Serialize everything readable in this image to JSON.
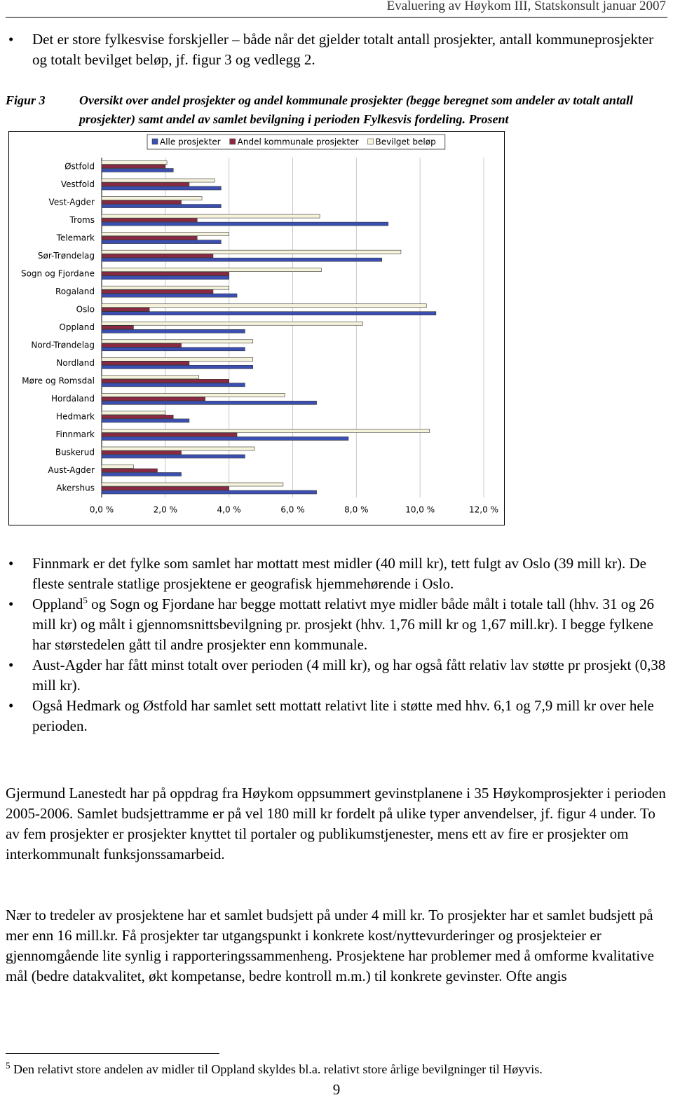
{
  "header": {
    "title": "Evaluering av Høykom III, Statskonsult januar 2007"
  },
  "bullets_top": [
    "Det er store fylkesvise forskjeller – både når det gjelder totalt antall prosjekter, antall kommuneprosjekter og totalt bevilget beløp, jf. figur 3 og vedlegg 2."
  ],
  "figure": {
    "label": "Figur 3",
    "caption": "Oversikt over andel prosjekter og andel kommunale prosjekter (begge beregnet som andeler av totalt antall prosjekter) samt andel av samlet bevilgning i perioden Fylkesvis fordeling. Prosent"
  },
  "chart_data": {
    "type": "hbar",
    "categories": [
      "Østfold",
      "Vestfold",
      "Vest-Agder",
      "Troms",
      "Telemark",
      "Sør-Trøndelag",
      "Sogn og Fjordane",
      "Rogaland",
      "Oslo",
      "Oppland",
      "Nord-Trøndelag",
      "Nordland",
      "Møre og Romsdal",
      "Hordaland",
      "Hedmark",
      "Finnmark",
      "Buskerud",
      "Aust-Agder",
      "Akershus"
    ],
    "series": [
      {
        "name": "Alle prosjekter",
        "color": "#3b4fb3",
        "values": [
          2.25,
          3.75,
          3.75,
          9.0,
          3.75,
          8.8,
          4.0,
          4.25,
          10.5,
          4.5,
          4.5,
          4.75,
          4.5,
          6.75,
          2.75,
          7.75,
          4.5,
          2.5,
          6.75
        ]
      },
      {
        "name": "Andel kommunale prosjekter",
        "color": "#8b2942",
        "values": [
          2.0,
          2.75,
          2.5,
          3.0,
          3.0,
          3.5,
          4.0,
          3.5,
          1.5,
          1.0,
          2.5,
          2.75,
          4.0,
          3.25,
          2.25,
          4.25,
          2.5,
          1.75,
          4.0
        ]
      },
      {
        "name": "Bevilget beløp",
        "color": "#f6f3dc",
        "values": [
          2.05,
          3.55,
          3.15,
          6.85,
          4.0,
          9.4,
          6.9,
          4.0,
          10.2,
          8.2,
          4.75,
          4.75,
          3.05,
          5.75,
          2.0,
          10.3,
          4.8,
          1.0,
          5.7
        ]
      }
    ],
    "xlim": [
      0,
      12
    ],
    "xticks": [
      {
        "value": 0,
        "label": "0,0 %"
      },
      {
        "value": 2,
        "label": "2,0 %"
      },
      {
        "value": 4,
        "label": "4,0 %"
      },
      {
        "value": 6,
        "label": "6,0 %"
      },
      {
        "value": 8,
        "label": "8,0 %"
      },
      {
        "value": 10,
        "label": "10,0 %"
      },
      {
        "value": 12,
        "label": "12,0 %"
      }
    ],
    "grid": true,
    "legend": "top"
  },
  "bullets_bottom": [
    {
      "text": "Finnmark er det fylke som samlet har mottatt mest midler (40 mill kr), tett fulgt av Oslo (39 mill kr). De fleste sentrale statlige prosjektene er geografisk hjemmehørende i Oslo."
    },
    {
      "text": "Oppland",
      "sup": "5",
      "rest": " og Sogn og Fjordane har begge mottatt relativt mye midler både målt i totale tall (hhv. 31 og 26 mill kr) og målt i gjennomsnittsbevilgning pr. prosjekt (hhv. 1,76 mill kr og 1,67 mill.kr). I begge fylkene har størstedelen gått til andre prosjekter enn kommunale."
    },
    {
      "text": "Aust-Agder har fått minst totalt over perioden (4 mill kr), og har også fått relativ lav støtte pr prosjekt (0,38 mill kr)."
    },
    {
      "text": "Også Hedmark og Østfold har samlet sett mottatt relativt lite i støtte med hhv. 6,1 og 7,9 mill kr over hele perioden."
    }
  ],
  "paragraphs": [
    "Gjermund Lanestedt har på oppdrag fra Høykom oppsummert gevinstplanene i 35 Høykomprosjekter i perioden 2005-2006. Samlet budsjettramme er på vel 180 mill kr fordelt på ulike typer anvendelser, jf. figur 4 under. To av fem prosjekter er prosjekter knyttet til portaler og publikumstjenester, mens ett av fire er prosjekter om interkommunalt funksjonssamarbeid.",
    "Nær to tredeler av prosjektene har et samlet budsjett på under 4 mill kr. To prosjekter har et samlet budsjett på mer enn 16 mill.kr. Få prosjekter tar utgangspunkt i konkrete kost/nyttevurderinger og prosjekteier er gjennomgående lite synlig i rapporteringssammenheng. Prosjektene har problemer med å omforme kvalitative mål (bedre datakvalitet, økt kompetanse, bedre kontroll m.m.) til konkrete gevinster. Ofte angis"
  ],
  "footnote": {
    "number": "5",
    "text": "Den relativt store andelen av midler til Oppland skyldes bl.a. relativt store årlige bevilgninger til Høyvis."
  },
  "page_number": "9"
}
